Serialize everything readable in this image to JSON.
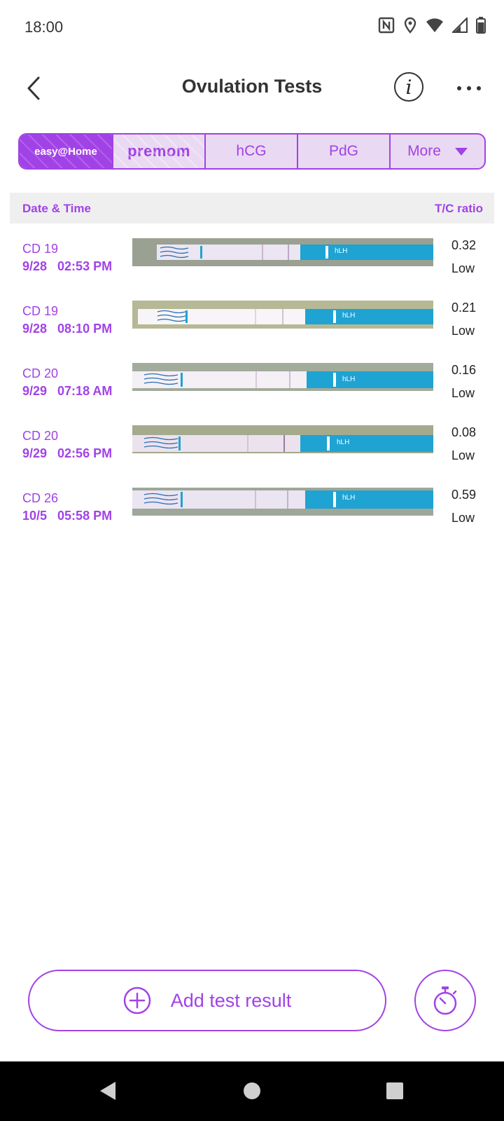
{
  "status_bar": {
    "time": "18:00",
    "icons": [
      "nfc-icon",
      "location-icon",
      "wifi-icon",
      "signal-icon",
      "battery-icon"
    ]
  },
  "app_bar": {
    "title": "Ovulation Tests",
    "back_icon": "back-arrow-icon",
    "info_icon": "info-icon",
    "info_glyph": "i",
    "more_icon": "more-horizontal-icon"
  },
  "tabs": [
    {
      "label": "easy@Home",
      "selected": true
    },
    {
      "label": "premom"
    },
    {
      "label": "hCG"
    },
    {
      "label": "PdG"
    },
    {
      "label": "More",
      "dropdown": true
    }
  ],
  "table": {
    "header": {
      "date": "Date & Time",
      "ratio": "T/C ratio"
    },
    "rows": [
      {
        "cd": "CD 19",
        "datetime": "9/28   02:53 PM",
        "ratio": "0.32",
        "level": "Low"
      },
      {
        "cd": "CD 19",
        "datetime": "9/28   08:10 PM",
        "ratio": "0.21",
        "level": "Low"
      },
      {
        "cd": "CD 20",
        "datetime": "9/29   07:18 AM",
        "ratio": "0.16",
        "level": "Low"
      },
      {
        "cd": "CD 20",
        "datetime": "9/29   02:56 PM",
        "ratio": "0.08",
        "level": "Low"
      },
      {
        "cd": "CD 26",
        "datetime": "10/5   05:58 PM",
        "ratio": "0.59",
        "level": "Low"
      }
    ]
  },
  "strip_label": "hLH",
  "actions": {
    "add_label": "Add test result",
    "add_icon": "plus-circle-icon",
    "timer_icon": "timer-icon"
  },
  "colors": {
    "accent": "#a142e6",
    "tab_bg": "#ead9f2",
    "strip_blue": "#1ea3d3"
  }
}
